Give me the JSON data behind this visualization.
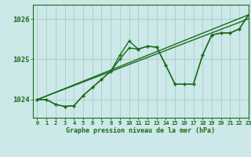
{
  "title": "Graphe pression niveau de la mer (hPa)",
  "bg_color": "#cce8e8",
  "grid_color": "#aacccc",
  "line_color": "#1a6b1a",
  "xlim": [
    -0.5,
    23
  ],
  "ylim": [
    1023.55,
    1026.35
  ],
  "yticks": [
    1024,
    1025,
    1026
  ],
  "xtick_labels": [
    "0",
    "1",
    "2",
    "3",
    "4",
    "5",
    "6",
    "7",
    "8",
    "9",
    "10",
    "11",
    "12",
    "13",
    "14",
    "15",
    "16",
    "17",
    "18",
    "19",
    "20",
    "21",
    "22",
    "23"
  ],
  "series1_x": [
    0,
    1,
    2,
    3,
    4,
    5,
    6,
    7,
    8,
    9,
    10,
    11,
    12,
    13,
    14,
    15,
    16,
    17,
    18,
    19,
    20,
    21,
    22,
    23
  ],
  "series1_y": [
    1024.0,
    1024.0,
    1023.88,
    1023.83,
    1023.85,
    1024.1,
    1024.3,
    1024.5,
    1024.7,
    1025.1,
    1025.45,
    1025.25,
    1025.32,
    1025.3,
    1024.85,
    1024.38,
    1024.38,
    1024.38,
    1025.1,
    1025.6,
    1025.65,
    1025.65,
    1025.75,
    1026.1
  ],
  "series2_x": [
    0,
    1,
    2,
    3,
    4,
    5,
    6,
    7,
    8,
    9,
    10,
    11,
    12,
    13,
    14,
    15,
    16,
    17,
    18,
    19,
    20,
    21,
    22,
    23
  ],
  "series2_y": [
    1024.0,
    1024.0,
    1023.88,
    1023.83,
    1023.85,
    1024.1,
    1024.3,
    1024.5,
    1024.7,
    1025.0,
    1025.28,
    1025.25,
    1025.32,
    1025.3,
    1024.85,
    1024.38,
    1024.38,
    1024.38,
    1025.1,
    1025.6,
    1025.65,
    1025.65,
    1025.75,
    1026.1
  ],
  "trend_x": [
    0,
    23
  ],
  "trend_y": [
    1024.0,
    1026.1
  ],
  "trend2_x": [
    0,
    23
  ],
  "trend2_y": [
    1024.0,
    1026.0
  ]
}
